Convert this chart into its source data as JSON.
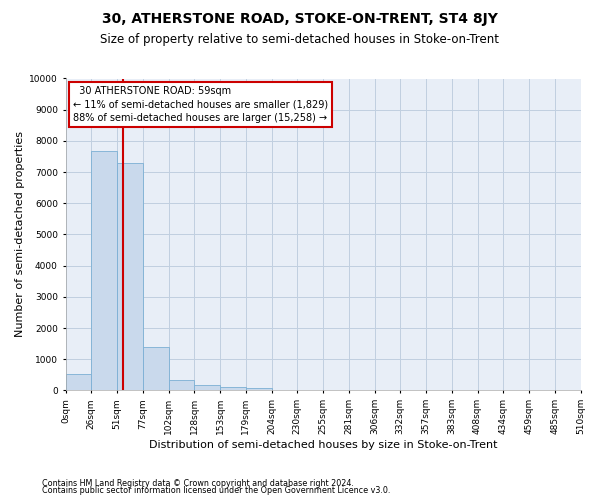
{
  "title": "30, ATHERSTONE ROAD, STOKE-ON-TRENT, ST4 8JY",
  "subtitle": "Size of property relative to semi-detached houses in Stoke-on-Trent",
  "xlabel": "Distribution of semi-detached houses by size in Stoke-on-Trent",
  "ylabel": "Number of semi-detached properties",
  "footer_line1": "Contains HM Land Registry data © Crown copyright and database right 2024.",
  "footer_line2": "Contains public sector information licensed under the Open Government Licence v3.0.",
  "bin_labels": [
    "0sqm",
    "26sqm",
    "51sqm",
    "77sqm",
    "102sqm",
    "128sqm",
    "153sqm",
    "179sqm",
    "204sqm",
    "230sqm",
    "255sqm",
    "281sqm",
    "306sqm",
    "332sqm",
    "357sqm",
    "383sqm",
    "408sqm",
    "434sqm",
    "459sqm",
    "485sqm",
    "510sqm"
  ],
  "bar_values": [
    540,
    7670,
    7290,
    1380,
    320,
    165,
    100,
    80,
    0,
    0,
    0,
    0,
    0,
    0,
    0,
    0,
    0,
    0,
    0,
    0
  ],
  "bar_color": "#c9d9ec",
  "bar_edge_color": "#7bafd4",
  "annotation_text": "  30 ATHERSTONE ROAD: 59sqm\n← 11% of semi-detached houses are smaller (1,829)\n88% of semi-detached houses are larger (15,258) →",
  "annotation_box_color": "#ffffff",
  "annotation_box_edge": "#cc0000",
  "red_line_color": "#cc0000",
  "ylim": [
    0,
    10000
  ],
  "yticks": [
    0,
    1000,
    2000,
    3000,
    4000,
    5000,
    6000,
    7000,
    8000,
    9000,
    10000
  ],
  "background_color": "#ffffff",
  "ax_background": "#e8eef7",
  "grid_color": "#c0cfe0",
  "title_fontsize": 10,
  "subtitle_fontsize": 8.5,
  "xlabel_fontsize": 8,
  "ylabel_fontsize": 8,
  "annotation_fontsize": 7,
  "tick_fontsize": 6.5
}
